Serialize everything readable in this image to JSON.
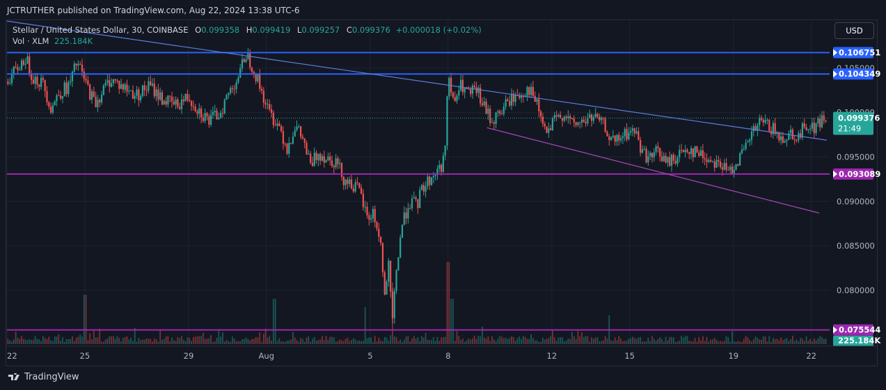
{
  "header": {
    "published_text": "JCTRUTHER published on TradingView.com, Aug 22, 2024 13:38 UTC-6"
  },
  "legend": {
    "symbol": "Stellar / United States Dollar, 30, COINBASE",
    "open_key": "O",
    "open": "0.099358",
    "high_key": "H",
    "high": "0.099419",
    "low_key": "L",
    "low": "0.099257",
    "close_key": "C",
    "close": "0.099376",
    "change": "+0.000018 (+0.02%)",
    "volume_label": "Vol · XLM",
    "volume": "225.184K"
  },
  "currency_button": "USD",
  "brand": {
    "name": "TradingView",
    "icon": "tradingview-logo-icon"
  },
  "colors": {
    "background": "#131722",
    "up": "#26a69a",
    "down": "#ef5350",
    "blue_line": "#2962ff",
    "magenta_line": "#9c27b0",
    "trend_blue": "#5b7ee0",
    "trend_magenta": "#ab47bc"
  },
  "chart_data": {
    "type": "candlestick",
    "symbol": "XLMUSD",
    "timeframe": "30",
    "y_range": [
      0.0738,
      0.1104
    ],
    "price_ticks": [
      "0.105000",
      "0.100000",
      "0.095000",
      "0.090000",
      "0.085000",
      "0.080000"
    ],
    "date_ticks": [
      "22",
      "25",
      "29",
      "Aug",
      "5",
      "8",
      "12",
      "15",
      "19",
      "22"
    ],
    "date_tick_positions": [
      0.0,
      3.0,
      7.0,
      10.0,
      14.0,
      17.0,
      21.0,
      24.0,
      28.0,
      31.0
    ],
    "x_range_days": [
      0.0,
      31.6
    ],
    "horizontal_levels": [
      {
        "price": 0.106751,
        "label": "0.106751",
        "color": "#2962ff"
      },
      {
        "price": 0.104349,
        "label": "0.104349",
        "color": "#2962ff"
      },
      {
        "price": 0.093089,
        "label": "0.093089",
        "color": "#9c27b0"
      },
      {
        "price": 0.075544,
        "label": "0.075544",
        "color": "#9c27b0"
      }
    ],
    "current_price": {
      "price": 0.099376,
      "label": "0.099376",
      "countdown": "21:49"
    },
    "trendlines": [
      {
        "color": "#5b7ee0",
        "from": {
          "day": 0.0,
          "price": 0.1103
        },
        "to": {
          "day": 31.6,
          "price": 0.0969
        }
      },
      {
        "color": "#ab47bc",
        "from": {
          "day": 18.5,
          "price": 0.0983
        },
        "to": {
          "day": 31.3,
          "price": 0.0887
        }
      }
    ],
    "price_path": [
      [
        0.0,
        0.1035
      ],
      [
        0.3,
        0.1045
      ],
      [
        0.7,
        0.1062
      ],
      [
        1.0,
        0.104
      ],
      [
        1.4,
        0.1032
      ],
      [
        1.7,
        0.1005
      ],
      [
        2.0,
        0.1022
      ],
      [
        2.4,
        0.103
      ],
      [
        2.7,
        0.1057
      ],
      [
        3.0,
        0.1035
      ],
      [
        3.4,
        0.101
      ],
      [
        3.7,
        0.1025
      ],
      [
        4.0,
        0.1038
      ],
      [
        4.5,
        0.1028
      ],
      [
        5.0,
        0.102
      ],
      [
        5.5,
        0.103
      ],
      [
        6.0,
        0.1015
      ],
      [
        6.5,
        0.1008
      ],
      [
        7.0,
        0.1018
      ],
      [
        7.4,
        0.1003
      ],
      [
        7.8,
        0.099
      ],
      [
        8.2,
        0.1
      ],
      [
        8.6,
        0.1025
      ],
      [
        9.0,
        0.1045
      ],
      [
        9.2,
        0.1068
      ],
      [
        9.5,
        0.105
      ],
      [
        9.8,
        0.1025
      ],
      [
        10.1,
        0.1
      ],
      [
        10.5,
        0.0985
      ],
      [
        10.8,
        0.096
      ],
      [
        11.1,
        0.0985
      ],
      [
        11.4,
        0.097
      ],
      [
        11.7,
        0.094
      ],
      [
        12.0,
        0.0955
      ],
      [
        12.3,
        0.095
      ],
      [
        12.7,
        0.0945
      ],
      [
        13.0,
        0.0925
      ],
      [
        13.3,
        0.092
      ],
      [
        13.6,
        0.091
      ],
      [
        13.9,
        0.088
      ],
      [
        14.1,
        0.0888
      ],
      [
        14.4,
        0.0855
      ],
      [
        14.55,
        0.079
      ],
      [
        14.7,
        0.083
      ],
      [
        14.85,
        0.076
      ],
      [
        15.0,
        0.082
      ],
      [
        15.2,
        0.087
      ],
      [
        15.5,
        0.09
      ],
      [
        15.8,
        0.0895
      ],
      [
        16.0,
        0.0915
      ],
      [
        16.3,
        0.0925
      ],
      [
        16.6,
        0.0935
      ],
      [
        16.85,
        0.0945
      ],
      [
        17.0,
        0.104
      ],
      [
        17.2,
        0.101
      ],
      [
        17.5,
        0.103
      ],
      [
        17.8,
        0.102
      ],
      [
        18.1,
        0.1025
      ],
      [
        18.4,
        0.1005
      ],
      [
        18.7,
        0.099
      ],
      [
        19.0,
        0.1
      ],
      [
        19.4,
        0.1015
      ],
      [
        19.8,
        0.102
      ],
      [
        20.1,
        0.1028
      ],
      [
        20.4,
        0.101
      ],
      [
        20.8,
        0.0975
      ],
      [
        21.1,
        0.099
      ],
      [
        21.5,
        0.1
      ],
      [
        21.8,
        0.0985
      ],
      [
        22.2,
        0.099
      ],
      [
        22.6,
        0.0995
      ],
      [
        23.0,
        0.0985
      ],
      [
        23.4,
        0.0965
      ],
      [
        23.8,
        0.0975
      ],
      [
        24.2,
        0.098
      ],
      [
        24.5,
        0.0955
      ],
      [
        24.8,
        0.0948
      ],
      [
        25.1,
        0.0958
      ],
      [
        25.4,
        0.0942
      ],
      [
        25.8,
        0.095
      ],
      [
        26.2,
        0.096
      ],
      [
        26.6,
        0.0955
      ],
      [
        27.0,
        0.0948
      ],
      [
        27.4,
        0.0945
      ],
      [
        27.8,
        0.0932
      ],
      [
        28.1,
        0.0945
      ],
      [
        28.4,
        0.0955
      ],
      [
        28.7,
        0.0975
      ],
      [
        29.0,
        0.0988
      ],
      [
        29.4,
        0.0985
      ],
      [
        29.8,
        0.097
      ],
      [
        30.2,
        0.0978
      ],
      [
        30.5,
        0.0972
      ],
      [
        30.8,
        0.0988
      ],
      [
        31.1,
        0.0982
      ],
      [
        31.4,
        0.0992
      ],
      [
        31.6,
        0.0994
      ]
    ],
    "volume_max": 225.184,
    "volume_label": "225.184K",
    "volume_spikes": [
      [
        3.0,
        0.6
      ],
      [
        10.3,
        0.55
      ],
      [
        13.8,
        0.45
      ],
      [
        14.85,
        0.75
      ],
      [
        17.0,
        1.0
      ],
      [
        17.15,
        0.55
      ],
      [
        23.2,
        0.35
      ]
    ]
  }
}
